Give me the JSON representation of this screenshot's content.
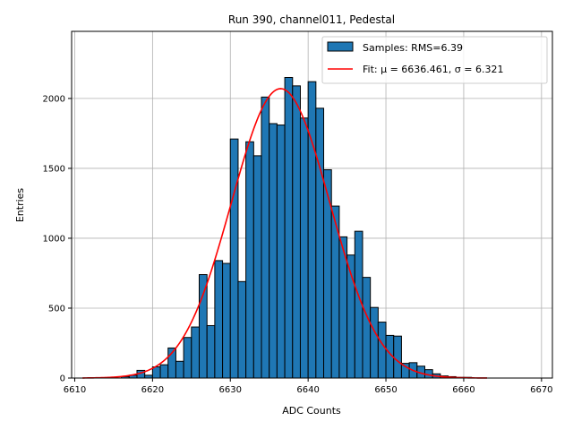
{
  "chart_data": {
    "type": "bar",
    "title": "Run 390, channel011, Pedestal",
    "xlabel": "ADC Counts",
    "ylabel": "Entries",
    "xlim": [
      6609.6,
      6671.4
    ],
    "ylim": [
      0,
      2480
    ],
    "xticks": [
      6610,
      6620,
      6630,
      6640,
      6650,
      6660,
      6670
    ],
    "yticks": [
      0,
      500,
      1000,
      1500,
      2000
    ],
    "grid": true,
    "bin_start": 6611,
    "bin_width": 1,
    "histogram": {
      "name": "Samples: RMS=6.39",
      "color": "#1f77b4",
      "edgecolor": "#000000",
      "values": [
        0,
        0,
        0,
        0,
        0,
        10,
        20,
        55,
        20,
        80,
        95,
        215,
        120,
        290,
        365,
        740,
        375,
        840,
        820,
        1710,
        690,
        1690,
        1590,
        2010,
        1820,
        1810,
        2150,
        2090,
        1860,
        2120,
        1930,
        1490,
        1230,
        1010,
        880,
        1050,
        720,
        505,
        400,
        305,
        300,
        105,
        110,
        85,
        60,
        30,
        15,
        10,
        5,
        5,
        0,
        0
      ]
    },
    "fit": {
      "name": "Fit: μ = 6636.461, σ = 6.321",
      "color": "#ff0000",
      "mu": 6636.461,
      "sigma": 6.321,
      "amplitude": 2070,
      "x_range": [
        6611,
        6663
      ]
    },
    "legend_position": "upper-right"
  }
}
